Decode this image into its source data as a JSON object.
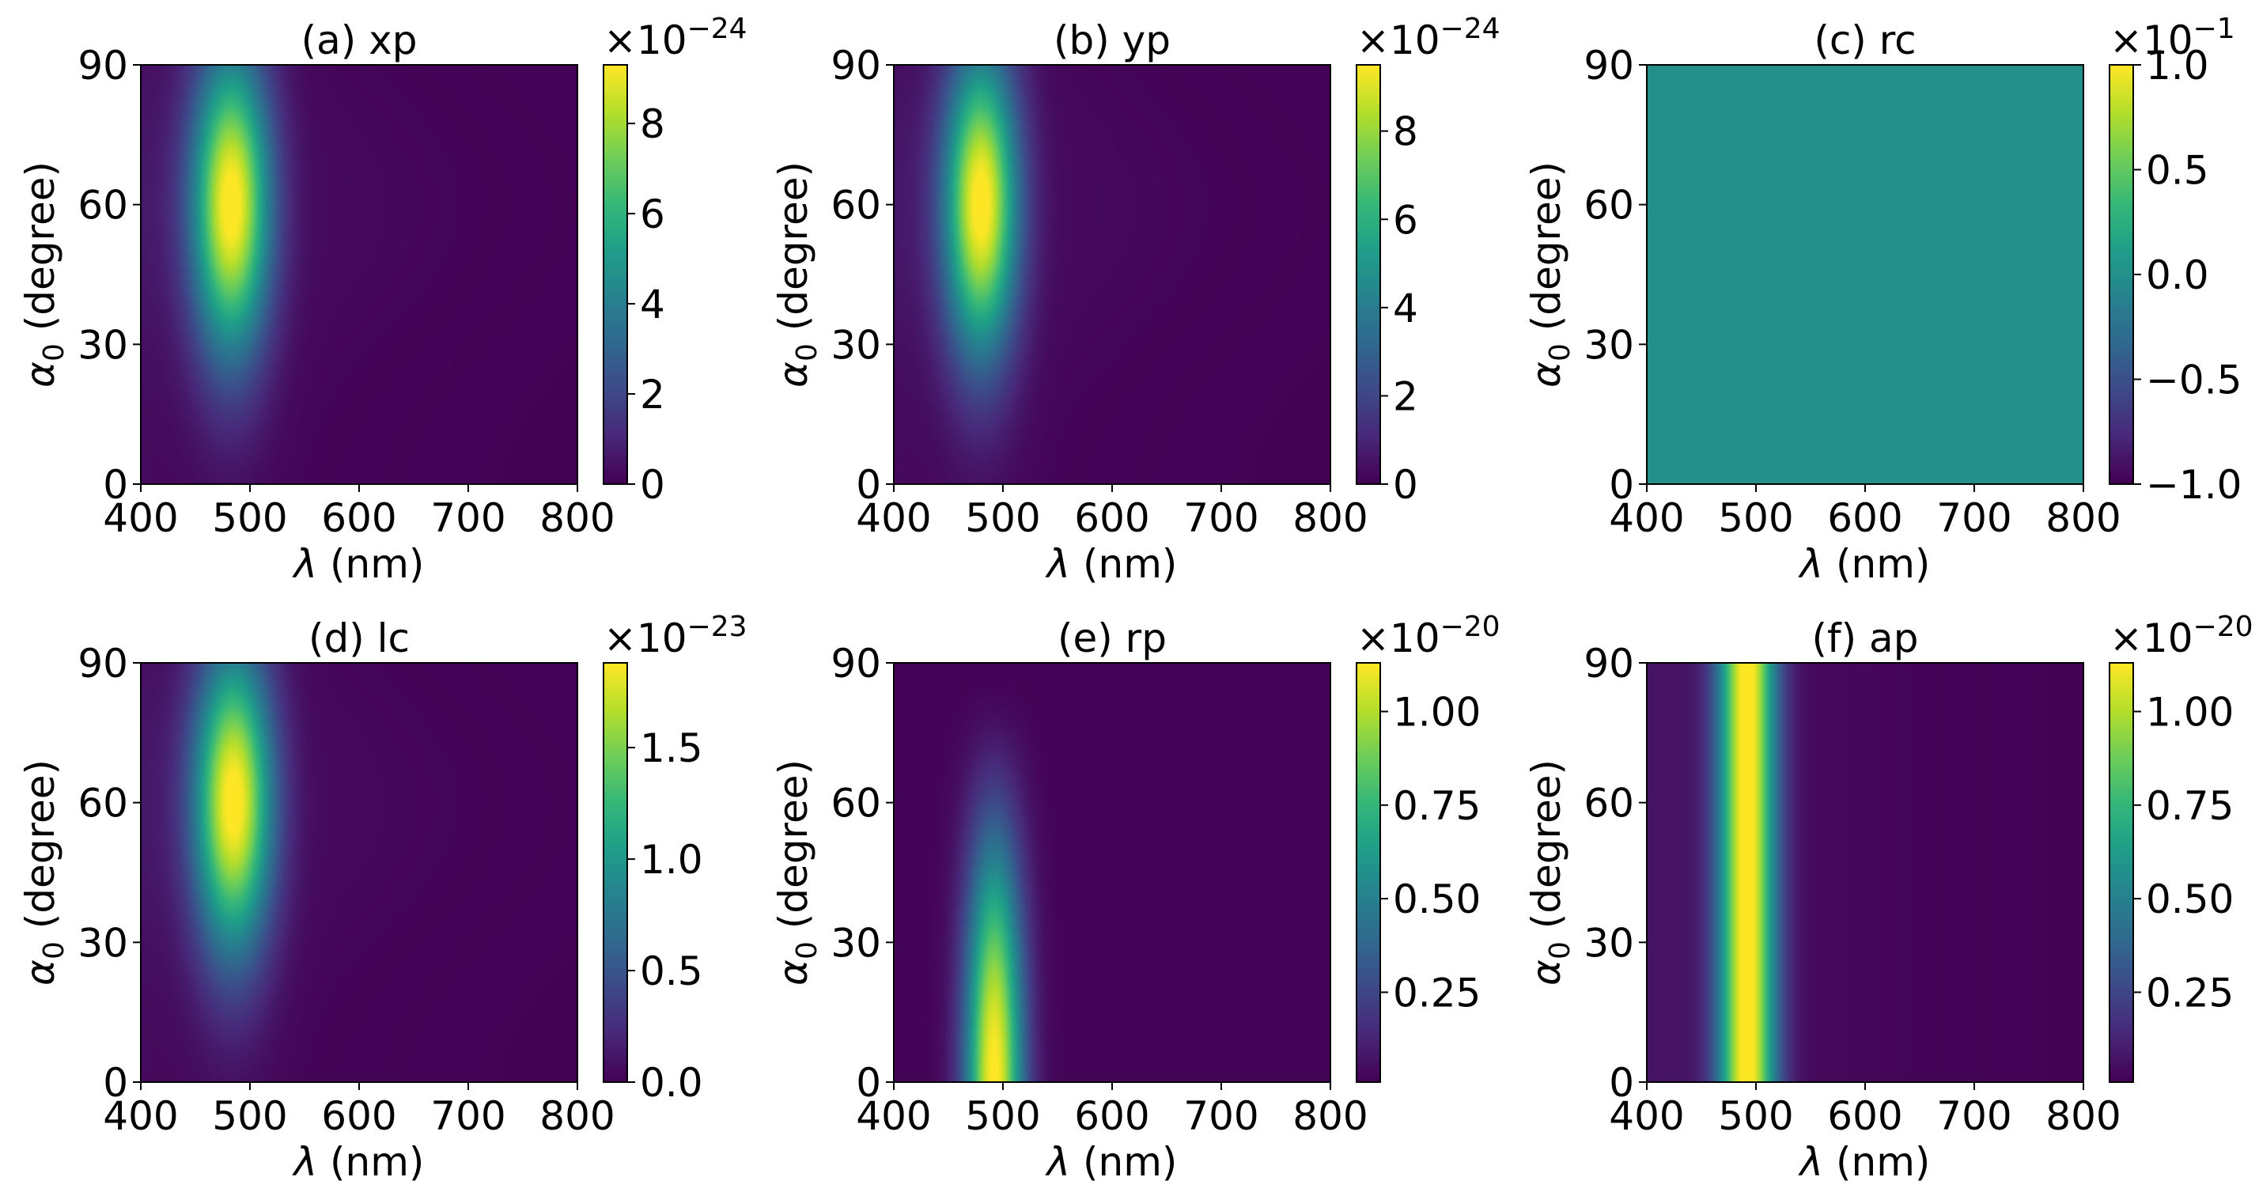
{
  "colors": {
    "colormap": "viridis",
    "viridis_stops": [
      "#440154",
      "#482878",
      "#3e4989",
      "#31688e",
      "#26828e",
      "#1f9e89",
      "#35b779",
      "#6ece58",
      "#b5de2b",
      "#fde725"
    ],
    "uniform_fill": "#21918c"
  },
  "chart_data": [
    {
      "type": "heatmap",
      "title": "(a) xp",
      "xlabel": "λ (nm)",
      "ylabel": "α0 (degree)",
      "xlim": [
        400,
        800
      ],
      "ylim": [
        0,
        90
      ],
      "xticks": [
        "400",
        "500",
        "600",
        "700",
        "800"
      ],
      "yticks": [
        "0",
        "30",
        "60",
        "90"
      ],
      "colorbar": {
        "exponent": "×10−24",
        "ticks": [
          "0",
          "2",
          "4",
          "6",
          "8"
        ],
        "range": [
          0,
          9.3
        ]
      },
      "field": {
        "model": "gaussian_peak",
        "peak_lambda_nm": 483,
        "peak_alpha_deg": 60,
        "lambda_width_nm": 35,
        "alpha_width_deg": 32,
        "max": 9.3,
        "background": 0.6
      }
    },
    {
      "type": "heatmap",
      "title": "(b) yp",
      "xlabel": "λ (nm)",
      "ylabel": "α0 (degree)",
      "xlim": [
        400,
        800
      ],
      "ylim": [
        0,
        90
      ],
      "xticks": [
        "400",
        "500",
        "600",
        "700",
        "800"
      ],
      "yticks": [
        "0",
        "30",
        "60",
        "90"
      ],
      "colorbar": {
        "exponent": "×10−24",
        "ticks": [
          "0",
          "2",
          "4",
          "6",
          "8"
        ],
        "range": [
          0,
          9.5
        ]
      },
      "field": {
        "model": "gaussian_peak",
        "peak_lambda_nm": 480,
        "peak_alpha_deg": 60,
        "lambda_width_nm": 33,
        "alpha_width_deg": 32,
        "max": 9.5,
        "background": 0.6
      }
    },
    {
      "type": "heatmap",
      "title": "(c) rc",
      "xlabel": "λ (nm)",
      "ylabel": "α0 (degree)",
      "xlim": [
        400,
        800
      ],
      "ylim": [
        0,
        90
      ],
      "xticks": [
        "400",
        "500",
        "600",
        "700",
        "800"
      ],
      "yticks": [
        "0",
        "30",
        "60",
        "90"
      ],
      "colorbar": {
        "exponent": "×10−1",
        "ticks": [
          "−1.0",
          "−0.5",
          "0.0",
          "0.5",
          "1.0"
        ],
        "range": [
          -1.0,
          1.0
        ]
      },
      "field": {
        "model": "uniform",
        "value": 0.0
      }
    },
    {
      "type": "heatmap",
      "title": "(d) lc",
      "xlabel": "λ (nm)",
      "ylabel": "α0 (degree)",
      "xlim": [
        400,
        800
      ],
      "ylim": [
        0,
        90
      ],
      "xticks": [
        "400",
        "500",
        "600",
        "700",
        "800"
      ],
      "yticks": [
        "0",
        "30",
        "60",
        "90"
      ],
      "colorbar": {
        "exponent": "×10−23",
        "ticks": [
          "0.0",
          "0.5",
          "1.0",
          "1.5"
        ],
        "range": [
          0,
          1.88
        ]
      },
      "field": {
        "model": "gaussian_peak",
        "peak_lambda_nm": 485,
        "peak_alpha_deg": 60,
        "lambda_width_nm": 35,
        "alpha_width_deg": 32,
        "max": 1.88,
        "background": 0.12
      }
    },
    {
      "type": "heatmap",
      "title": "(e) rp",
      "xlabel": "λ (nm)",
      "ylabel": "α0 (degree)",
      "xlim": [
        400,
        800
      ],
      "ylim": [
        0,
        90
      ],
      "xticks": [
        "400",
        "500",
        "600",
        "700",
        "800"
      ],
      "yticks": [
        "0",
        "30",
        "60",
        "90"
      ],
      "colorbar": {
        "exponent": "×10−20",
        "ticks": [
          "0.25",
          "0.50",
          "0.75",
          "1.00"
        ],
        "range": [
          0.01,
          1.13
        ]
      },
      "field": {
        "model": "cosine_band",
        "peak_lambda_nm": 492,
        "lambda_width_nm": 26,
        "alpha_power": 2.2,
        "max": 1.13,
        "background": 0.02
      }
    },
    {
      "type": "heatmap",
      "title": "(f) ap",
      "xlabel": "λ (nm)",
      "ylabel": "α0 (degree)",
      "xlim": [
        400,
        800
      ],
      "ylim": [
        0,
        90
      ],
      "xticks": [
        "400",
        "500",
        "600",
        "700",
        "800"
      ],
      "yticks": [
        "0",
        "30",
        "60",
        "90"
      ],
      "colorbar": {
        "exponent": "×10−20",
        "ticks": [
          "0.25",
          "0.50",
          "0.75",
          "1.00"
        ],
        "range": [
          0.01,
          1.13
        ]
      },
      "field": {
        "model": "vertical_band",
        "peak_lambda_nm": 492,
        "lambda_width_nm": 26,
        "max": 1.13,
        "background": 0.02
      }
    }
  ]
}
